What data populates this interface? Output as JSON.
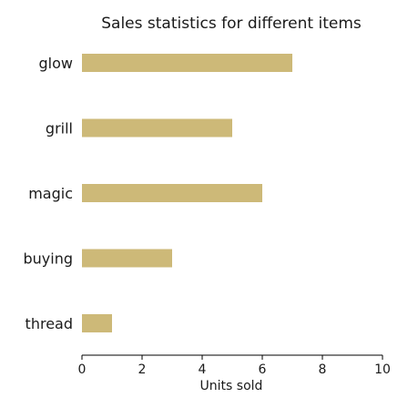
{
  "chart_data": {
    "type": "bar",
    "orientation": "horizontal",
    "title": "Sales statistics for different items",
    "xlabel": "Units sold",
    "ylabel": "",
    "categories": [
      "glow",
      "grill",
      "magic",
      "buying",
      "thread"
    ],
    "values": [
      7,
      5,
      6,
      3,
      1
    ],
    "xlim": [
      0,
      10
    ],
    "xticks": [
      0,
      2,
      4,
      6,
      8,
      10
    ],
    "grid": false,
    "bar_color": "#cdb978"
  }
}
